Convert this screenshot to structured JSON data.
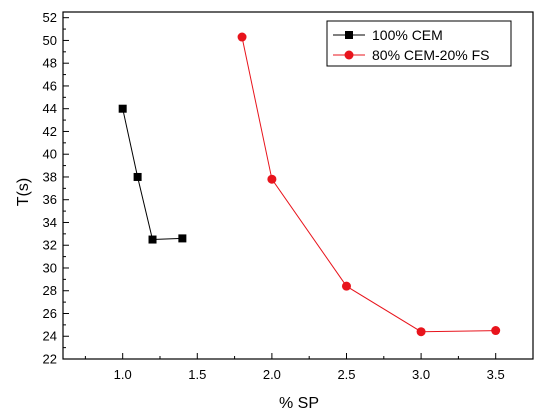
{
  "chart_data": {
    "type": "line",
    "title": "",
    "xlabel": "% SP",
    "ylabel": "T(s)",
    "xlim": [
      0.6,
      3.75
    ],
    "ylim": [
      22,
      52.5
    ],
    "xticks": [
      1.0,
      1.5,
      2.0,
      2.5,
      3.0,
      3.5
    ],
    "xtick_labels": [
      "1.0",
      "1.5",
      "2.0",
      "2.5",
      "3.0",
      "3.5"
    ],
    "yticks": [
      22,
      24,
      26,
      28,
      30,
      32,
      34,
      36,
      38,
      40,
      42,
      44,
      46,
      48,
      50,
      52
    ],
    "ytick_labels": [
      "22",
      "24",
      "26",
      "28",
      "30",
      "32",
      "34",
      "36",
      "38",
      "40",
      "42",
      "44",
      "46",
      "48",
      "50",
      "52"
    ],
    "grid": false,
    "legend_position": "top-right",
    "series": [
      {
        "name": "100% CEM",
        "marker": "square",
        "color": "#000000",
        "x": [
          1.0,
          1.1,
          1.2,
          1.4
        ],
        "y": [
          44.0,
          38.0,
          32.5,
          32.6
        ]
      },
      {
        "name": "80% CEM-20% FS",
        "marker": "circle",
        "color": "#e8141c",
        "x": [
          1.8,
          2.0,
          2.5,
          3.0,
          3.5
        ],
        "y": [
          50.3,
          37.8,
          28.4,
          24.4,
          24.5
        ]
      }
    ]
  }
}
